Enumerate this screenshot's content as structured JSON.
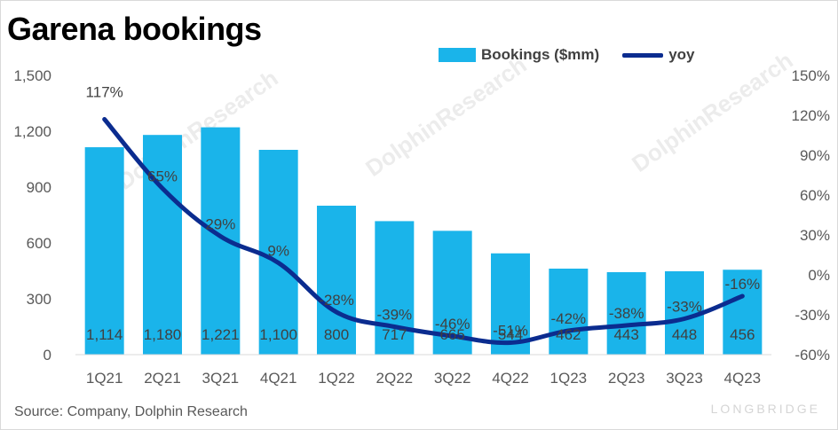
{
  "title": "Garena bookings",
  "source": "Source: Company, Dolphin Research",
  "brand": "LONGBRIDGE",
  "watermark": "DolphinResearch",
  "colors": {
    "bars": "#1ab4ea",
    "line": "#0b2c8f",
    "text": "#404040",
    "axis": "#595959"
  },
  "chart_data": {
    "type": "bar",
    "categories": [
      "1Q21",
      "2Q21",
      "3Q21",
      "4Q21",
      "1Q22",
      "2Q22",
      "3Q22",
      "4Q22",
      "1Q23",
      "2Q23",
      "3Q23",
      "4Q23"
    ],
    "series": [
      {
        "name": "Bookings ($mm)",
        "type": "bar",
        "axis": "left",
        "values": [
          1114,
          1180,
          1221,
          1100,
          800,
          717,
          665,
          544,
          462,
          443,
          448,
          456
        ],
        "labels": [
          "1,114",
          "1,180",
          "1,221",
          "1,100",
          "800",
          "717",
          "665",
          "544",
          "462",
          "443",
          "448",
          "456"
        ]
      },
      {
        "name": "yoy",
        "type": "line",
        "axis": "right",
        "values": [
          117,
          65,
          29,
          9,
          -28,
          -39,
          -46,
          -51,
          -42,
          -38,
          -33,
          -16
        ],
        "labels": [
          "117%",
          "65%",
          "29%",
          "9%",
          "-28%",
          "-39%",
          "-46%",
          "-51%",
          "-42%",
          "-38%",
          "-33%",
          "-16%"
        ]
      }
    ],
    "y_left": {
      "range": [
        0,
        1500
      ],
      "ticks": [
        "0",
        "300",
        "600",
        "900",
        "1,200",
        "1,500"
      ]
    },
    "y_right": {
      "range": [
        -60,
        150
      ],
      "ticks": [
        "-60%",
        "-30%",
        "0%",
        "30%",
        "60%",
        "90%",
        "120%",
        "150%"
      ]
    },
    "legend_position": "top-right",
    "grid": false
  }
}
